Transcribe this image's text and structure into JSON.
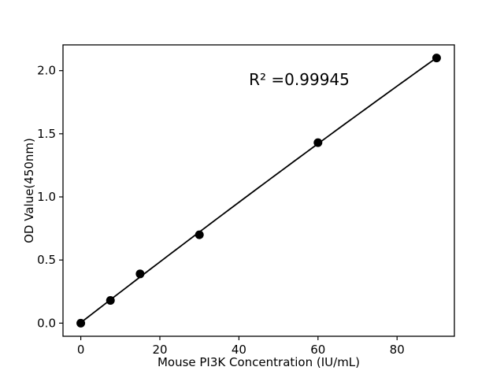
{
  "chart_data": {
    "type": "scatter",
    "title": "",
    "xlabel": "Mouse PI3K Concentration (IU/mL)",
    "ylabel": "OD Value(450nm)",
    "annotation": "R² =0.99945",
    "r_squared": 0.99945,
    "x_ticks": [
      "0",
      "20",
      "40",
      "60",
      "80"
    ],
    "x_tick_values": [
      0,
      20,
      40,
      60,
      80
    ],
    "y_ticks": [
      "0.0",
      "0.5",
      "1.0",
      "1.5",
      "2.0"
    ],
    "y_tick_values": [
      0.0,
      0.5,
      1.0,
      1.5,
      2.0
    ],
    "xlim": [
      -4.5,
      94.5
    ],
    "ylim": [
      -0.104,
      2.204
    ],
    "grid": false,
    "legend": "none",
    "x": [
      0,
      7.5,
      15,
      30,
      60,
      90
    ],
    "y": [
      0.0,
      0.18,
      0.39,
      0.7,
      1.43,
      2.1
    ],
    "points": [
      [
        0,
        0.0
      ],
      [
        7.5,
        0.18
      ],
      [
        15,
        0.39
      ],
      [
        30,
        0.7
      ],
      [
        60,
        1.43
      ],
      [
        90,
        2.1
      ]
    ],
    "fit": {
      "type": "quadratic",
      "coefficients": [
        -1.0365e-05,
        0.024244,
        0.004
      ],
      "x_range": [
        0,
        90
      ]
    },
    "marker_color": "#000000",
    "line_color": "#000000",
    "axis_color": "#000000",
    "text_color": "#000000",
    "background": "#ffffff"
  }
}
